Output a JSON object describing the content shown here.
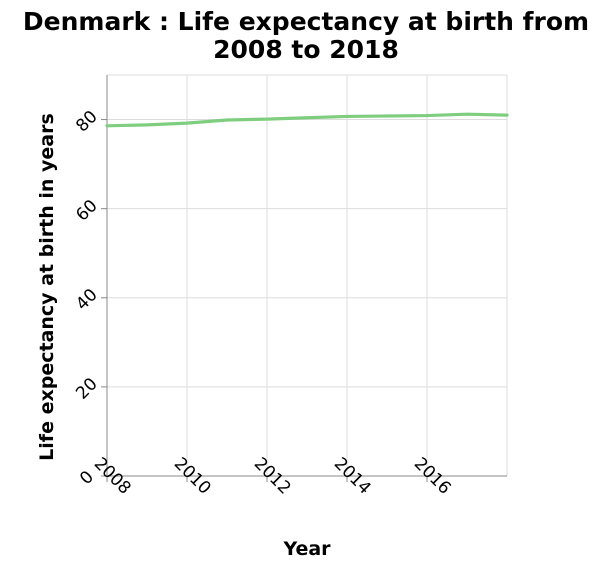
{
  "chart_data": {
    "type": "line",
    "title_line1": "Denmark : Life expectancy at birth from",
    "title_line2": "2008 to 2018",
    "xlabel": "Year",
    "ylabel": "Life expectancy at birth in years",
    "xlim": [
      2008,
      2018
    ],
    "ylim": [
      0,
      90
    ],
    "xticks": [
      2008,
      2010,
      2012,
      2014,
      2016
    ],
    "yticks": [
      0,
      20,
      40,
      60,
      80
    ],
    "grid": true,
    "line_color": "#7fce7f",
    "series": [
      {
        "x": [
          2008,
          2009,
          2010,
          2011,
          2012,
          2013,
          2014,
          2015,
          2016,
          2017,
          2018
        ],
        "y": [
          78.6,
          78.8,
          79.2,
          79.9,
          80.1,
          80.4,
          80.7,
          80.8,
          80.9,
          81.2,
          81.0
        ]
      }
    ]
  }
}
